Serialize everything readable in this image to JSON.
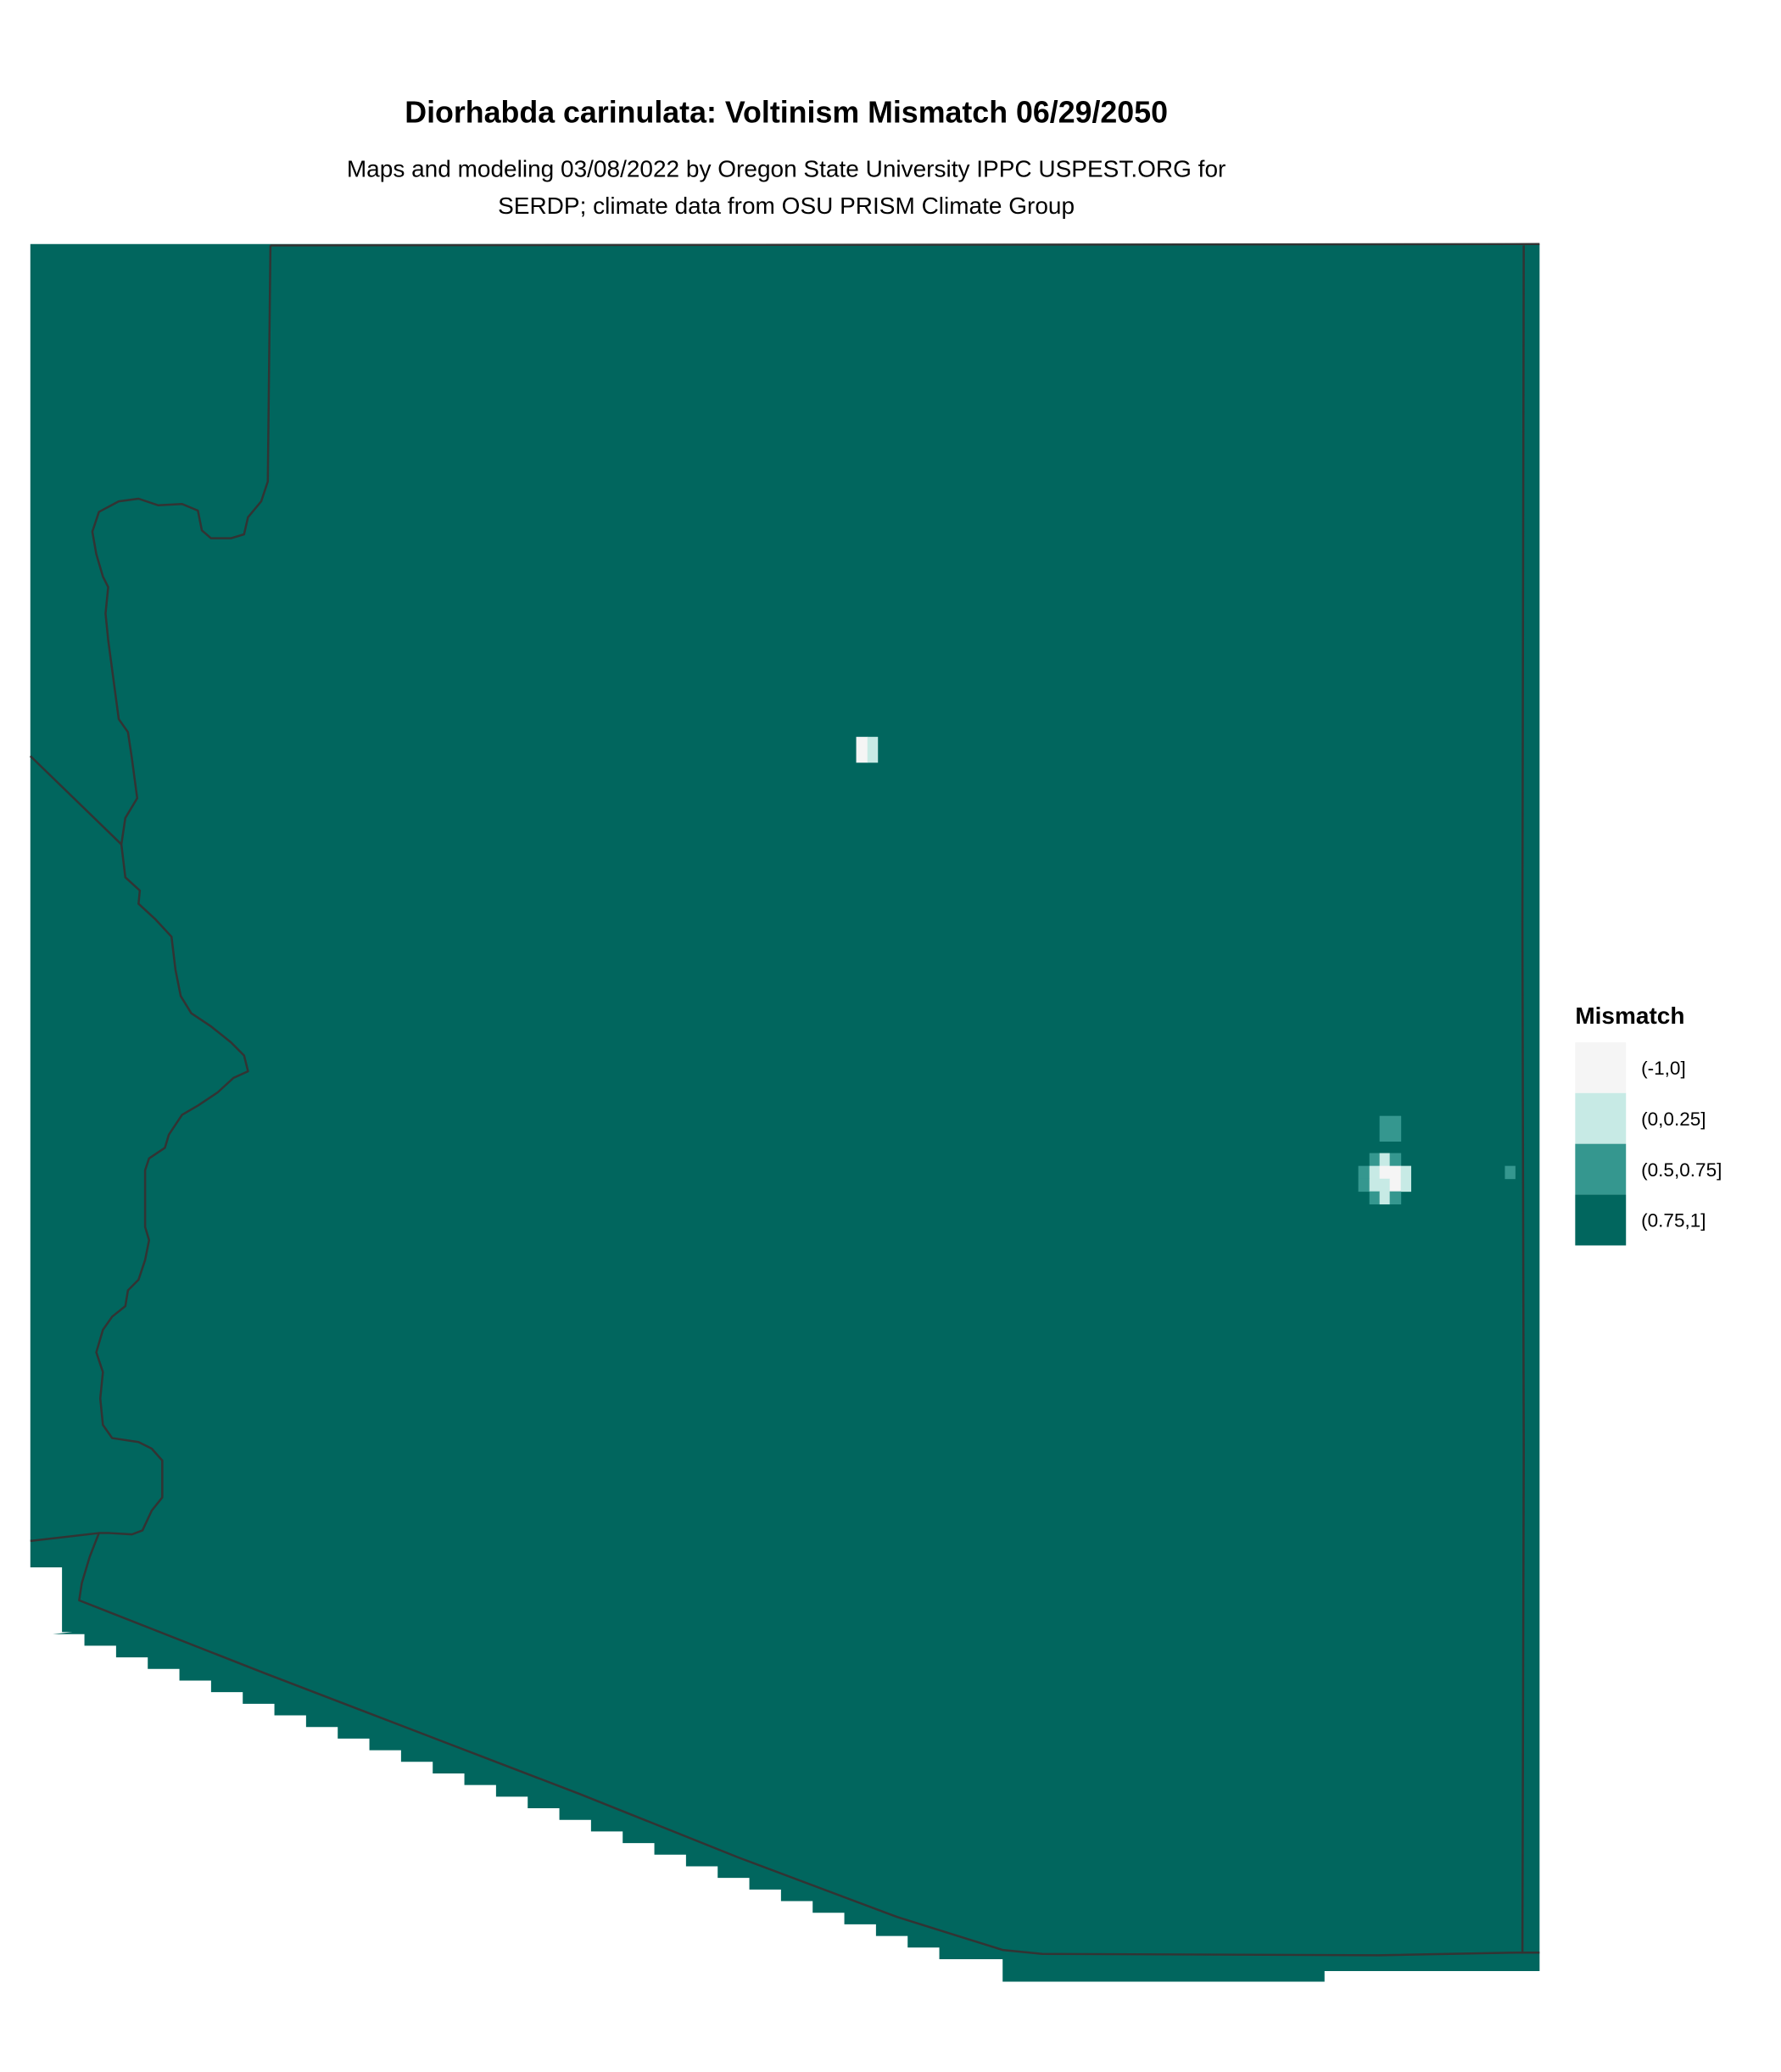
{
  "title": "Diorhabda carinulata: Voltinism Mismatch 06/29/2050",
  "subtitle_line1": "Maps and modeling 03/08/2022 by Oregon State University IPPC USPEST.ORG for",
  "subtitle_line2": "SERDP; climate data from OSU PRISM Climate Group",
  "legend": {
    "title": "Mismatch",
    "items": [
      {
        "label": "(-1,0]",
        "color": "#f5f5f5"
      },
      {
        "label": "(0,0.25]",
        "color": "#c7eae5"
      },
      {
        "label": "(0.5,0.75]",
        "color": "#35978f"
      },
      {
        "label": "(0.75,1]",
        "color": "#01665e"
      }
    ]
  },
  "colors": {
    "background_fill": "#01665e",
    "border": "#333333"
  }
}
